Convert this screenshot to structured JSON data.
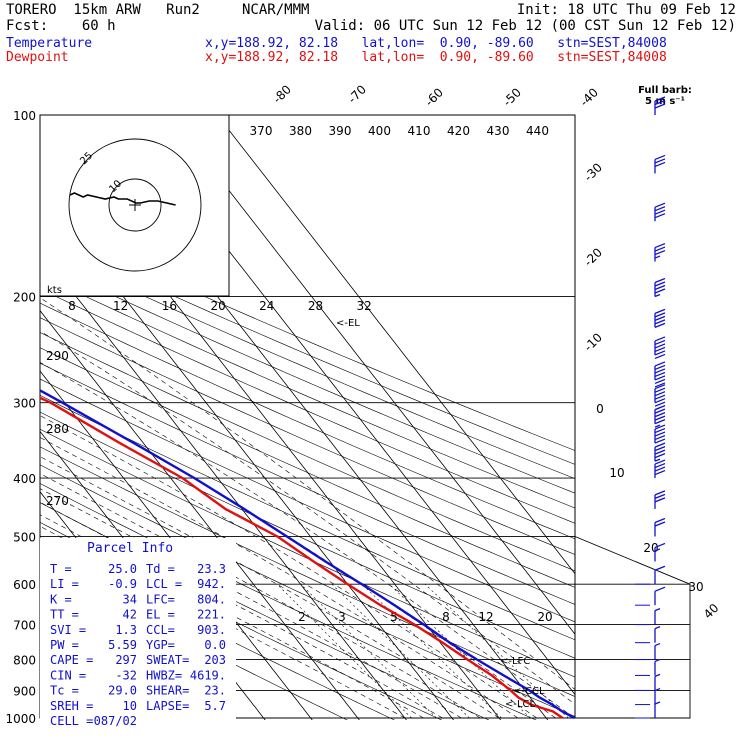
{
  "header": {
    "line1_left": "TORERO  15km ARW   Run2     NCAR/MMM",
    "line1_right": "Init: 18 UTC Thu 09 Feb 12",
    "line2_left": "Fcst:    60 h",
    "line2_right": "Valid: 06 UTC Sun 12 Feb 12 (00 CST Sun 12 Feb 12)",
    "line3_label": "Temperature",
    "line3_info": "x,y=188.92, 82.18   lat,lon=  0.90, -89.60   stn=SEST,84008",
    "line4_label": "Dewpoint",
    "line4_info": "x,y=188.92, 82.18   lat,lon=  0.90, -89.60   stn=SEST,84008"
  },
  "colors": {
    "temperature": "#1010d0",
    "dewpoint": "#e01010",
    "parcel_text": "#1010d0"
  },
  "chart_data": {
    "type": "line",
    "plot_kind": "skew-T log-P sounding",
    "y_axis": {
      "label": "pressure (hPa)",
      "scale": "log",
      "ticks": [
        100,
        200,
        300,
        400,
        500,
        600,
        700,
        800,
        900,
        1000
      ]
    },
    "isotherm_labels": [
      "-80",
      "-70",
      "-60",
      "-50",
      "-40",
      "-30",
      "-20",
      "-10",
      "0",
      "10",
      "20",
      "30",
      "40"
    ],
    "theta_labels_top": [
      "370",
      "380",
      "390",
      "400",
      "410",
      "420",
      "430",
      "440"
    ],
    "theta_labels_left": [
      "290",
      "280",
      "270"
    ],
    "mixing_ratio_labels": [
      "2",
      "3",
      "5",
      "8",
      "12",
      "20"
    ],
    "hodograph_labels": {
      "units": "kts",
      "rings": [
        "10",
        "25"
      ],
      "speed_axis": [
        "8",
        "12",
        "16",
        "20",
        "24",
        "28",
        "32"
      ]
    },
    "barb_legend": {
      "line1": "Full barb:",
      "line2": "5 m s⁻¹"
    },
    "series": [
      {
        "name": "Temperature",
        "points": [
          {
            "p": 1000,
            "t": 26.0
          },
          {
            "p": 975,
            "t": 24.5
          },
          {
            "p": 950,
            "t": 23.5
          },
          {
            "p": 925,
            "t": 22.0
          },
          {
            "p": 900,
            "t": 21.0
          },
          {
            "p": 850,
            "t": 18.0
          },
          {
            "p": 800,
            "t": 15.0
          },
          {
            "p": 750,
            "t": 12.0
          },
          {
            "p": 700,
            "t": 9.5
          },
          {
            "p": 650,
            "t": 6.5
          },
          {
            "p": 600,
            "t": 3.0
          },
          {
            "p": 550,
            "t": -1.0
          },
          {
            "p": 500,
            "t": -5.0
          },
          {
            "p": 450,
            "t": -9.5
          },
          {
            "p": 400,
            "t": -15.0
          },
          {
            "p": 350,
            "t": -22.0
          },
          {
            "p": 300,
            "t": -30.5
          },
          {
            "p": 250,
            "t": -41.0
          },
          {
            "p": 200,
            "t": -53.5
          },
          {
            "p": 175,
            "t": -61.0
          },
          {
            "p": 150,
            "t": -69.5
          },
          {
            "p": 125,
            "t": -77.0
          },
          {
            "p": 110,
            "t": -79.0
          },
          {
            "p": 100,
            "t": -78.0
          }
        ]
      },
      {
        "name": "Dewpoint",
        "points": [
          {
            "p": 1000,
            "t": 23.5
          },
          {
            "p": 975,
            "t": 22.5
          },
          {
            "p": 950,
            "t": 19.0
          },
          {
            "p": 925,
            "t": 17.5
          },
          {
            "p": 900,
            "t": 17.0
          },
          {
            "p": 850,
            "t": 15.5
          },
          {
            "p": 800,
            "t": 13.0
          },
          {
            "p": 750,
            "t": 10.5
          },
          {
            "p": 700,
            "t": 7.5
          },
          {
            "p": 650,
            "t": 3.5
          },
          {
            "p": 600,
            "t": 0.0
          },
          {
            "p": 550,
            "t": -3.5
          },
          {
            "p": 500,
            "t": -7.0
          },
          {
            "p": 450,
            "t": -13.5
          },
          {
            "p": 400,
            "t": -17.5
          },
          {
            "p": 350,
            "t": -25.0
          },
          {
            "p": 300,
            "t": -33.0
          },
          {
            "p": 250,
            "t": -47.0
          },
          {
            "p": 200,
            "t": -62.0
          },
          {
            "p": 180,
            "t": -70.0
          },
          {
            "p": 160,
            "t": -81.0
          },
          {
            "p": 140,
            "t": -78.0
          },
          {
            "p": 120,
            "t": -77.0
          },
          {
            "p": 100,
            "t": -74.0
          }
        ]
      }
    ],
    "annotations": [
      "<-EL",
      "<-LFC",
      "<-CCL",
      "<-LCL"
    ],
    "winds": [
      {
        "p": 100,
        "spd": 6,
        "dir": 270
      },
      {
        "p": 125,
        "spd": 6,
        "dir": 270
      },
      {
        "p": 150,
        "spd": 8,
        "dir": 270
      },
      {
        "p": 175,
        "spd": 7,
        "dir": 270
      },
      {
        "p": 200,
        "spd": 9,
        "dir": 270
      },
      {
        "p": 225,
        "spd": 10,
        "dir": 270
      },
      {
        "p": 250,
        "spd": 12,
        "dir": 270
      },
      {
        "p": 275,
        "spd": 14,
        "dir": 270
      },
      {
        "p": 300,
        "spd": 13,
        "dir": 270
      },
      {
        "p": 325,
        "spd": 11,
        "dir": 270
      },
      {
        "p": 350,
        "spd": 10,
        "dir": 270
      },
      {
        "p": 375,
        "spd": 9,
        "dir": 270
      },
      {
        "p": 400,
        "spd": 8,
        "dir": 270
      },
      {
        "p": 450,
        "spd": 6,
        "dir": 270
      },
      {
        "p": 500,
        "spd": 4,
        "dir": 270
      },
      {
        "p": 550,
        "spd": 3,
        "dir": 270
      },
      {
        "p": 600,
        "spd": 2,
        "dir": 270
      },
      {
        "p": 650,
        "spd": 2,
        "dir": 270
      },
      {
        "p": 700,
        "spd": 1,
        "dir": 270
      },
      {
        "p": 750,
        "spd": 1,
        "dir": 270
      },
      {
        "p": 800,
        "spd": 1,
        "dir": 270
      },
      {
        "p": 850,
        "spd": 1,
        "dir": 270
      },
      {
        "p": 900,
        "spd": 1,
        "dir": 270
      },
      {
        "p": 950,
        "spd": 1,
        "dir": 270
      },
      {
        "p": 1000,
        "spd": 1,
        "dir": 270
      }
    ],
    "hodograph_trace": [
      [
        2,
        0
      ],
      [
        6,
        -1
      ],
      [
        10,
        -2
      ],
      [
        14,
        -2
      ],
      [
        18,
        -1
      ],
      [
        20,
        -1
      ],
      [
        24,
        -3
      ],
      [
        28,
        -3
      ],
      [
        30,
        -4
      ],
      [
        34,
        -3
      ],
      [
        38,
        -4
      ],
      [
        42,
        -5
      ],
      [
        44,
        -4
      ],
      [
        48,
        -6
      ],
      [
        50,
        -5
      ]
    ]
  },
  "parcel": {
    "title": "Parcel Info",
    "rows": [
      [
        "T  =",
        "25.0",
        "Td =",
        "23.3"
      ],
      [
        "LI =",
        "-0.9",
        "LCL =",
        "942."
      ],
      [
        "K  =",
        "34",
        "LFC=",
        "804."
      ],
      [
        "TT =",
        "42",
        "EL =",
        "221."
      ],
      [
        "SVI =",
        "1.3",
        "CCL=",
        "903."
      ],
      [
        "PW =",
        "5.59",
        "YGP=",
        "0.0"
      ],
      [
        "CAPE =",
        "297",
        "SWEAT=",
        "203"
      ],
      [
        "CIN =",
        "-32",
        "HWBZ=",
        "4619."
      ],
      [
        "Tc =",
        "29.0",
        "SHEAR=",
        "23."
      ],
      [
        "SREH =",
        "10",
        "LAPSE=",
        "5.7"
      ],
      [
        "CELL =",
        "087/02",
        "",
        ""
      ]
    ]
  }
}
